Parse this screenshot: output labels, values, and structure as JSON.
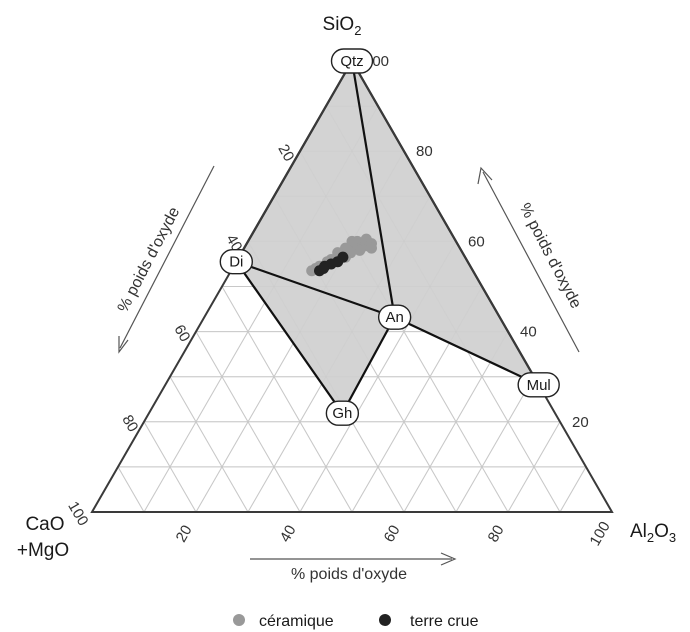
{
  "apex": {
    "top": {
      "main": "SiO",
      "sub": "2"
    },
    "left": {
      "line1": "CaO",
      "line2": "+MgO"
    },
    "right": {
      "a": "Al",
      "a_sub": "2",
      "b": "O",
      "b_sub": "3"
    }
  },
  "axis_caption": "% poids d'oxyde",
  "ticks": [
    "20",
    "40",
    "60",
    "80",
    "100"
  ],
  "phases": [
    {
      "key": "qtz",
      "label": "Qtz",
      "sio2": 100,
      "al2o3": 0
    },
    {
      "key": "di",
      "label": "Di",
      "sio2": 55.5,
      "al2o3": 0
    },
    {
      "key": "an",
      "label": "An",
      "sio2": 43.2,
      "al2o3": 36.6
    },
    {
      "key": "mul",
      "label": "Mul",
      "sio2": 28.2,
      "al2o3": 71.8
    },
    {
      "key": "gh",
      "label": "Gh",
      "sio2": 21.9,
      "al2o3": 37.2
    }
  ],
  "colors": {
    "ceramique": "#999999",
    "terre_crue": "#222222",
    "field": "#d3d3d3"
  },
  "chart_data": {
    "type": "scatter",
    "subtype": "ternary",
    "components": [
      "SiO2",
      "CaO+MgO",
      "Al2O3"
    ],
    "axis_range": [
      0,
      100
    ],
    "grid": true,
    "legend_position": "bottom",
    "series": [
      {
        "name": "céramique",
        "color": "#999999",
        "points": [
          {
            "sio2": 60,
            "al2o3": 21
          },
          {
            "sio2": 59.5,
            "al2o3": 22
          },
          {
            "sio2": 59,
            "al2o3": 23
          },
          {
            "sio2": 60.5,
            "al2o3": 22.5
          },
          {
            "sio2": 58.5,
            "al2o3": 21.5
          },
          {
            "sio2": 58,
            "al2o3": 22.5
          },
          {
            "sio2": 59,
            "al2o3": 20.5
          },
          {
            "sio2": 60,
            "al2o3": 20
          },
          {
            "sio2": 58.5,
            "al2o3": 19.5
          },
          {
            "sio2": 57.5,
            "al2o3": 21
          },
          {
            "sio2": 57,
            "al2o3": 19.5
          },
          {
            "sio2": 57.5,
            "al2o3": 18.5
          },
          {
            "sio2": 56.5,
            "al2o3": 20.5
          },
          {
            "sio2": 56,
            "al2o3": 18
          },
          {
            "sio2": 55.5,
            "al2o3": 17.5
          },
          {
            "sio2": 54.5,
            "al2o3": 16.5
          },
          {
            "sio2": 54,
            "al2o3": 16
          },
          {
            "sio2": 53.5,
            "al2o3": 15.5
          },
          {
            "sio2": 59.5,
            "al2o3": 24
          },
          {
            "sio2": 58.5,
            "al2o3": 24.5
          }
        ]
      },
      {
        "name": "terre crue",
        "color": "#222222",
        "points": [
          {
            "sio2": 56.5,
            "al2o3": 20
          },
          {
            "sio2": 55.5,
            "al2o3": 19.5
          },
          {
            "sio2": 55,
            "al2o3": 18.5
          },
          {
            "sio2": 54.5,
            "al2o3": 17.5
          },
          {
            "sio2": 54,
            "al2o3": 17.5
          },
          {
            "sio2": 53.5,
            "al2o3": 17
          }
        ]
      }
    ]
  }
}
